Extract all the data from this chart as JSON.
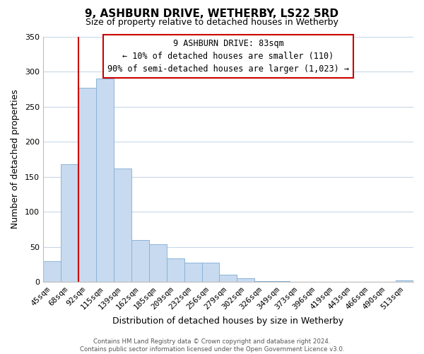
{
  "title": "9, ASHBURN DRIVE, WETHERBY, LS22 5RD",
  "subtitle": "Size of property relative to detached houses in Wetherby",
  "xlabel": "Distribution of detached houses by size in Wetherby",
  "ylabel": "Number of detached properties",
  "bar_labels": [
    "45sqm",
    "68sqm",
    "92sqm",
    "115sqm",
    "139sqm",
    "162sqm",
    "185sqm",
    "209sqm",
    "232sqm",
    "256sqm",
    "279sqm",
    "302sqm",
    "326sqm",
    "349sqm",
    "373sqm",
    "396sqm",
    "419sqm",
    "443sqm",
    "466sqm",
    "490sqm",
    "513sqm"
  ],
  "bar_values": [
    29,
    168,
    277,
    290,
    162,
    60,
    54,
    33,
    27,
    27,
    10,
    5,
    1,
    1,
    0,
    0,
    0,
    0,
    0,
    0,
    2
  ],
  "bar_color": "#c8daf0",
  "bar_edge_color": "#8ab4d8",
  "vline_color": "#cc0000",
  "vline_pos": 1.5,
  "ylim": [
    0,
    350
  ],
  "yticks": [
    0,
    50,
    100,
    150,
    200,
    250,
    300,
    350
  ],
  "annotation_title": "9 ASHBURN DRIVE: 83sqm",
  "annotation_line1": "← 10% of detached houses are smaller (110)",
  "annotation_line2": "90% of semi-detached houses are larger (1,023) →",
  "annotation_box_color": "#ffffff",
  "annotation_box_edge": "#cc0000",
  "footer_line1": "Contains HM Land Registry data © Crown copyright and database right 2024.",
  "footer_line2": "Contains public sector information licensed under the Open Government Licence v3.0.",
  "background_color": "#ffffff",
  "grid_color": "#c8d8e8"
}
